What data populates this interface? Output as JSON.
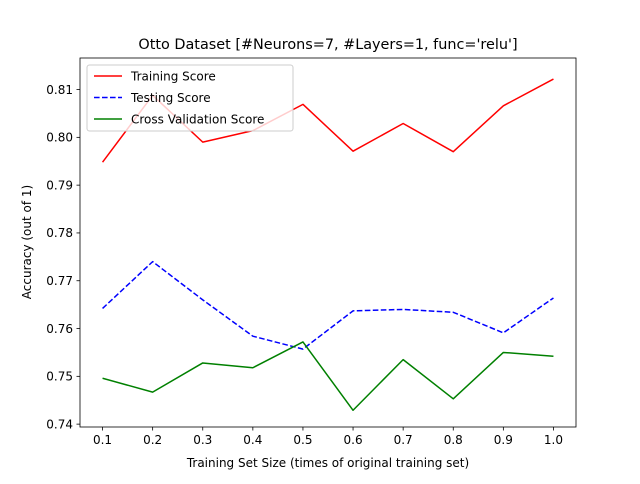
{
  "chart_data": {
    "type": "line",
    "title": "Otto Dataset [#Neurons=7, #Layers=1, func='relu']",
    "xlabel": "Training Set Size (times of original training set)",
    "ylabel": "Accuracy (out of 1)",
    "x": [
      0.1,
      0.2,
      0.3,
      0.4,
      0.5,
      0.6,
      0.7,
      0.8,
      0.9,
      1.0
    ],
    "x_ticks": [
      "0.1",
      "0.2",
      "0.3",
      "0.4",
      "0.5",
      "0.6",
      "0.7",
      "0.8",
      "0.9",
      "1.0"
    ],
    "y_ticks": [
      "0.74",
      "0.75",
      "0.76",
      "0.77",
      "0.78",
      "0.79",
      "0.80",
      "0.81"
    ],
    "xlim": [
      0.055,
      1.045
    ],
    "ylim": [
      0.7394,
      0.8166
    ],
    "grid": false,
    "legend_position": "upper-left",
    "series": [
      {
        "name": "Training Score",
        "color": "#ff0000",
        "dash": "solid",
        "values": [
          0.7948,
          0.8088,
          0.799,
          0.8014,
          0.8069,
          0.7971,
          0.8029,
          0.797,
          0.8066,
          0.8122
        ]
      },
      {
        "name": "Testing Score",
        "color": "#0000ff",
        "dash": "dashed",
        "values": [
          0.7642,
          0.774,
          0.766,
          0.7584,
          0.7557,
          0.7637,
          0.764,
          0.7634,
          0.7591,
          0.7664
        ]
      },
      {
        "name": "Cross Validation Score",
        "color": "#008000",
        "dash": "solid",
        "values": [
          0.7496,
          0.7467,
          0.7528,
          0.7518,
          0.7572,
          0.7429,
          0.7535,
          0.7453,
          0.755,
          0.7542
        ]
      }
    ]
  }
}
